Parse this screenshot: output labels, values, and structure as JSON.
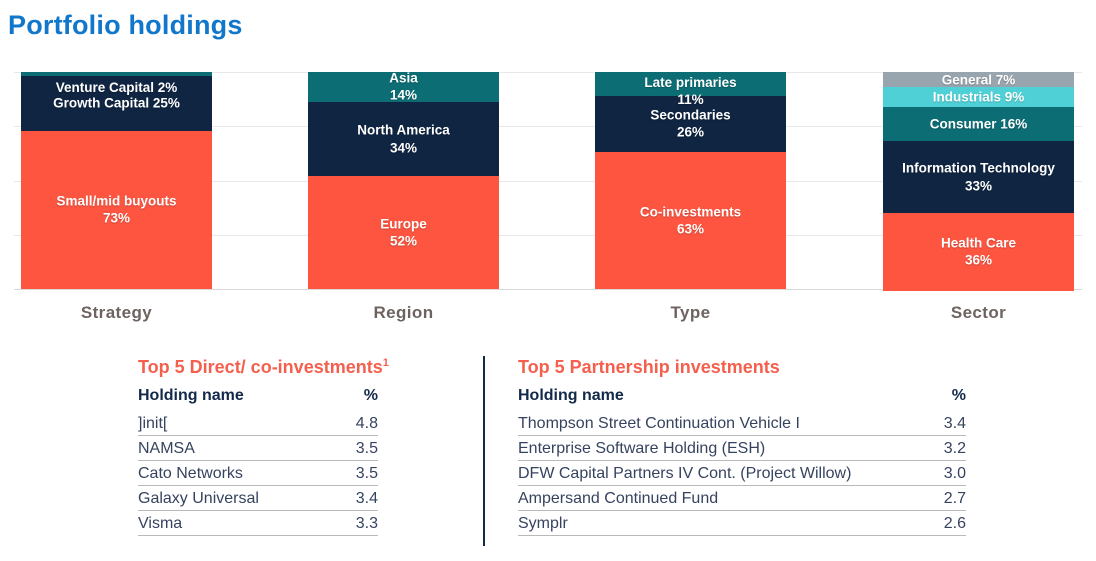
{
  "page_title": "Portfolio holdings",
  "colors": {
    "title_blue": "#1177cb",
    "coral": "#fd5540",
    "navy": "#0f2542",
    "teal": "#0c6d74",
    "light_cyan": "#4fd0d6",
    "gray": "#98a4ae",
    "table_title_orange": "#f4604d",
    "axis_label_gray": "#6e6360",
    "gridline": "#e8e8e8",
    "row_separator": "#b9b9b9",
    "divider_navy": "#13294a"
  },
  "chart_data": [
    {
      "type": "bar",
      "stacked": true,
      "category": "Strategy",
      "ylim": [
        0,
        100
      ],
      "grid": true,
      "series": [
        {
          "name": "Venture Capital",
          "value": 2,
          "color": "#0c6d74",
          "lines": [
            "Venture Capital 2%"
          ],
          "label_align": "below"
        },
        {
          "name": "Growth Capital",
          "value": 25,
          "color": "#0f2542",
          "lines": [
            "Growth Capital 25%"
          ],
          "label_align": "center"
        },
        {
          "name": "Small/mid buyouts",
          "value": 73,
          "color": "#fd5540",
          "lines": [
            "Small/mid buyouts",
            "73%"
          ],
          "label_align": "center"
        }
      ]
    },
    {
      "type": "bar",
      "stacked": true,
      "category": "Region",
      "ylim": [
        0,
        100
      ],
      "grid": true,
      "series": [
        {
          "name": "Asia",
          "value": 14,
          "color": "#0c6d74",
          "lines": [
            "Asia",
            "14%"
          ],
          "label_align": "center"
        },
        {
          "name": "North America",
          "value": 34,
          "color": "#0f2542",
          "lines": [
            "North America",
            "34%"
          ],
          "label_align": "center"
        },
        {
          "name": "Europe",
          "value": 52,
          "color": "#fd5540",
          "lines": [
            "Europe",
            "52%"
          ],
          "label_align": "center"
        }
      ]
    },
    {
      "type": "bar",
      "stacked": true,
      "category": "Type",
      "ylim": [
        0,
        100
      ],
      "grid": true,
      "series": [
        {
          "name": "Late primaries",
          "value": 11,
          "color": "#0c6d74",
          "lines": [
            "Late primaries",
            "11%"
          ],
          "label_align": "top"
        },
        {
          "name": "Secondaries",
          "value": 26,
          "color": "#0f2542",
          "lines": [
            "Secondaries",
            "26%"
          ],
          "label_align": "center"
        },
        {
          "name": "Co-investments",
          "value": 63,
          "color": "#fd5540",
          "lines": [
            "Co-investments",
            "63%"
          ],
          "label_align": "center"
        }
      ]
    },
    {
      "type": "bar",
      "stacked": true,
      "category": "Sector",
      "ylim": [
        0,
        100
      ],
      "grid": true,
      "series": [
        {
          "name": "General",
          "value": 7,
          "color": "#98a4ae",
          "lines": [
            "General 7%"
          ],
          "label_align": "center"
        },
        {
          "name": "Industrials",
          "value": 9,
          "color": "#4fd0d6",
          "lines": [
            "Industrials 9%"
          ],
          "label_align": "center"
        },
        {
          "name": "Consumer",
          "value": 16,
          "color": "#0c6d74",
          "lines": [
            "Consumer 16%"
          ],
          "label_align": "center"
        },
        {
          "name": "Information Technology",
          "value": 33,
          "color": "#0f2542",
          "lines": [
            "Information Technology",
            "33%"
          ],
          "label_align": "center"
        },
        {
          "name": "Health Care",
          "value": 36,
          "color": "#fd5540",
          "lines": [
            "Health Care",
            "36%"
          ],
          "label_align": "center"
        }
      ]
    }
  ],
  "tables": {
    "left": {
      "title": "Top 5 Direct/ co-investments",
      "title_superscript": "1",
      "columns": [
        "Holding name",
        "%"
      ],
      "rows": [
        [
          "]init[",
          "4.8"
        ],
        [
          "NAMSA",
          "3.5"
        ],
        [
          "Cato Networks",
          "3.5"
        ],
        [
          "Galaxy Universal",
          "3.4"
        ],
        [
          "Visma",
          "3.3"
        ]
      ]
    },
    "right": {
      "title": "Top 5 Partnership investments",
      "title_superscript": "",
      "columns": [
        "Holding name",
        "%"
      ],
      "rows": [
        [
          "Thompson Street Continuation Vehicle I",
          "3.4"
        ],
        [
          "Enterprise Software Holding (ESH)",
          "3.2"
        ],
        [
          "DFW Capital Partners IV Cont. (Project Willow)",
          "3.0"
        ],
        [
          "Ampersand Continued Fund",
          "2.7"
        ],
        [
          "Symplr",
          "2.6"
        ]
      ]
    }
  }
}
